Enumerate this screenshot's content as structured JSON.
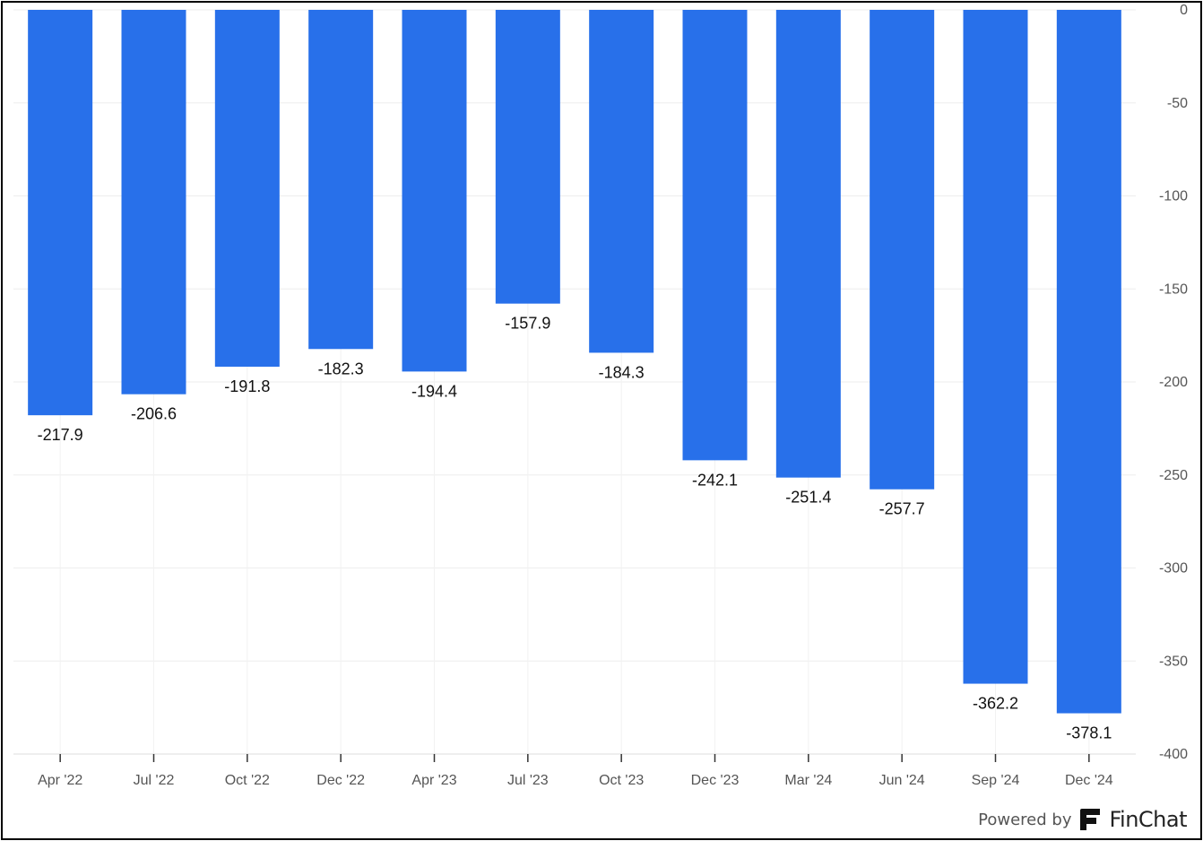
{
  "chart_data": {
    "type": "bar",
    "categories": [
      "Apr '22",
      "Jul '22",
      "Oct '22",
      "Dec '22",
      "Apr '23",
      "Jul '23",
      "Oct '23",
      "Dec '23",
      "Mar '24",
      "Jun '24",
      "Sep '24",
      "Dec '24"
    ],
    "values": [
      -217.9,
      -206.6,
      -191.8,
      -182.3,
      -194.4,
      -157.9,
      -184.3,
      -242.1,
      -251.4,
      -257.7,
      -362.2,
      -378.1
    ],
    "value_labels": [
      "-217.9",
      "-206.6",
      "-191.8",
      "-182.3",
      "-194.4",
      "-157.9",
      "-184.3",
      "-242.1",
      "-251.4",
      "-257.7",
      "-362.2",
      "-378.1"
    ],
    "ylim": [
      -400,
      0
    ],
    "y_ticks": [
      0,
      -50,
      -100,
      -150,
      -200,
      -250,
      -300,
      -350,
      -400
    ],
    "y_axis_position": "right",
    "grid": true,
    "bar_color": "#2870EA",
    "title": "",
    "xlabel": "",
    "ylabel": ""
  },
  "branding": {
    "powered_by": "Powered by",
    "name": "FinChat",
    "logo_icon": "finchat-logo-icon"
  }
}
